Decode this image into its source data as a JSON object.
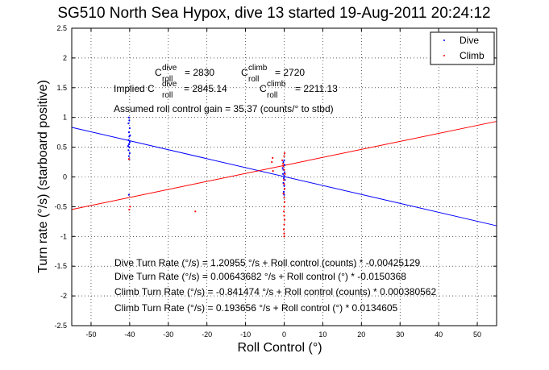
{
  "chart_data": {
    "type": "scatter",
    "title": "SG510 North Sea Hypox, dive 13 started 19-Aug-2011 20:24:12",
    "xlabel": "Roll Control (°)",
    "ylabel": "Turn rate (°/s) (starboard positive)",
    "xlim": [
      -55,
      55
    ],
    "ylim": [
      -2.5,
      2.5
    ],
    "xticks": [
      "-50",
      "-40",
      "-30",
      "-20",
      "-10",
      "0",
      "10",
      "20",
      "30",
      "40",
      "50"
    ],
    "yticks": [
      "-2.5",
      "-2",
      "-1.5",
      "-1",
      "-0.5",
      "0",
      "0.5",
      "1",
      "1.5",
      "2",
      "2.5"
    ],
    "grid": true,
    "legend_position": "top-right",
    "series": [
      {
        "name": "Dive",
        "color": "#0000ff",
        "marker": "dot",
        "points": [
          [
            -40.2,
            1.0
          ],
          [
            -40.1,
            0.95
          ],
          [
            -40.3,
            0.9
          ],
          [
            -40.0,
            0.82
          ],
          [
            -40.2,
            0.75
          ],
          [
            -40.1,
            0.68
          ],
          [
            -40.3,
            0.62
          ],
          [
            -40.0,
            0.58
          ],
          [
            -40.2,
            0.55
          ],
          [
            -40.1,
            0.5
          ],
          [
            -40.3,
            0.45
          ],
          [
            -40.0,
            0.4
          ],
          [
            -40.2,
            0.35
          ],
          [
            -40.1,
            0.3
          ],
          [
            -40.0,
            0.6
          ],
          [
            -39.9,
            0.7
          ],
          [
            -40.4,
            0.52
          ],
          [
            -40.2,
            -0.3
          ],
          [
            -0.4,
            0.15
          ],
          [
            -0.2,
            0.12
          ],
          [
            0.1,
            0.08
          ],
          [
            -0.3,
            0.05
          ],
          [
            0.0,
            0.02
          ],
          [
            -0.1,
            -0.02
          ],
          [
            0.2,
            -0.05
          ],
          [
            -0.2,
            -0.1
          ],
          [
            0.0,
            -0.15
          ],
          [
            0.1,
            -0.2
          ],
          [
            -0.1,
            -0.25
          ],
          [
            0.0,
            -0.3
          ],
          [
            0.1,
            0.2
          ],
          [
            -0.2,
            0.25
          ],
          [
            0.0,
            0.28
          ]
        ]
      },
      {
        "name": "Climb",
        "color": "#ff0000",
        "marker": "dot",
        "points": [
          [
            -40.1,
            -0.55
          ],
          [
            -39.9,
            -0.5
          ],
          [
            -40.2,
            0.3
          ],
          [
            -23.0,
            -0.58
          ],
          [
            -3.0,
            0.32
          ],
          [
            -3.2,
            0.25
          ],
          [
            -2.9,
            0.1
          ],
          [
            -0.5,
            0.28
          ],
          [
            -0.3,
            0.22
          ],
          [
            0.0,
            0.35
          ],
          [
            0.1,
            0.4
          ],
          [
            -0.2,
            0.18
          ],
          [
            0.0,
            0.12
          ],
          [
            0.2,
            0.05
          ],
          [
            -0.1,
            -0.05
          ],
          [
            0.0,
            -0.12
          ],
          [
            0.1,
            -0.2
          ],
          [
            -0.2,
            -0.28
          ],
          [
            0.0,
            -0.35
          ],
          [
            0.1,
            -0.42
          ],
          [
            0.0,
            -0.5
          ],
          [
            -0.1,
            -0.58
          ],
          [
            0.0,
            -0.65
          ],
          [
            0.1,
            -0.72
          ],
          [
            0.0,
            -0.8
          ],
          [
            -0.1,
            -0.88
          ],
          [
            0.0,
            -0.95
          ],
          [
            0.0,
            -1.0
          ]
        ]
      }
    ],
    "fit_lines": [
      {
        "series": "Dive",
        "color": "#0000ff",
        "intercept": 0.00643682,
        "slope": -0.0150368
      },
      {
        "series": "Climb",
        "color": "#ff0000",
        "intercept": 0.193656,
        "slope": 0.0134605
      }
    ]
  },
  "annotations": {
    "c_dive_prefix": "C",
    "c_dive_sup": "dive",
    "c_dive_sub": "roll",
    "c_dive_value": "= 2830",
    "c_climb_prefix": "C",
    "c_climb_sup": "climb",
    "c_climb_sub": "roll",
    "c_climb_value": "= 2720",
    "implied_prefix": "Implied C",
    "implied_dive_sup": "dive",
    "implied_dive_sub": "roll",
    "implied_dive_value": "= 2845.14",
    "implied_climb_prefix": "C",
    "implied_climb_sup": "climb",
    "implied_climb_sub": "roll",
    "implied_climb_value": "= 2211.13",
    "gain_text": "Assumed roll control gain = 35.37 (counts/° to stbd)",
    "fit_lines_text": [
      "Dive Turn Rate (°/s) = 1.20955 °/s + Roll control (counts) * -0.00425129",
      "Dive Turn Rate (°/s) = 0.00643682 °/s + Roll control (°) * -0.0150368",
      "Climb Turn Rate (°/s) = -0.841474 °/s + Roll control (counts) * 0.000380562",
      "Climb Turn Rate (°/s) = 0.193656 °/s + Roll control (°) * 0.0134605"
    ]
  }
}
